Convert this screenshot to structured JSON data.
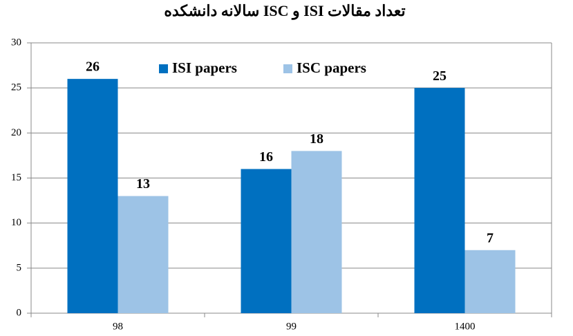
{
  "chart_data": {
    "type": "bar",
    "title": "تعداد مقالات ISI و ISC سالانه دانشکده",
    "categories": [
      "98",
      "99",
      "1400"
    ],
    "series": [
      {
        "name": "ISI papers",
        "color": "#0070c0",
        "values": [
          26,
          16,
          25
        ]
      },
      {
        "name": "ISC papers",
        "color": "#9dc3e6",
        "values": [
          13,
          18,
          7
        ]
      }
    ],
    "ylim": [
      0,
      30
    ],
    "yticks": [
      0,
      5,
      10,
      15,
      20,
      25,
      30
    ],
    "grid": true,
    "legend": "top"
  }
}
